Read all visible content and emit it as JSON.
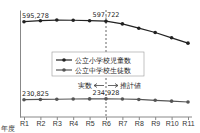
{
  "chart_data": {
    "type": "line",
    "x_label": "年度",
    "categories": [
      "R1",
      "R2",
      "R3",
      "R4",
      "R5",
      "R6",
      "R7",
      "R8",
      "R9",
      "R10",
      "R11"
    ],
    "series": [
      {
        "name": "公立小学校児童数",
        "color": "#222222",
        "marker": "circle",
        "line_style": "solid",
        "values": [
          595278,
          600000,
          603000,
          602000,
          600000,
          597722,
          585000,
          565000,
          545000,
          520000,
          495000
        ],
        "value_labels": [
          "595,278",
          null,
          null,
          null,
          null,
          "597,722",
          null,
          null,
          null,
          null,
          null
        ]
      },
      {
        "name": "公立中学校生徒数",
        "color": "#555555",
        "marker": "circle",
        "line_style": "solid",
        "values": [
          230825,
          232000,
          233000,
          234000,
          234500,
          234928,
          234000,
          232000,
          228000,
          224000,
          220000
        ],
        "value_labels": [
          "230,825",
          null,
          null,
          null,
          null,
          "234,928",
          null,
          null,
          null,
          null,
          null
        ]
      }
    ],
    "ylim": [
      150000,
      650000
    ],
    "tick_labels": "x",
    "data_labels": true,
    "legend": "center",
    "annotations": [
      {
        "text": "実数",
        "x": "R6"
      },
      {
        "text": "推計値",
        "x": "R6"
      }
    ]
  }
}
